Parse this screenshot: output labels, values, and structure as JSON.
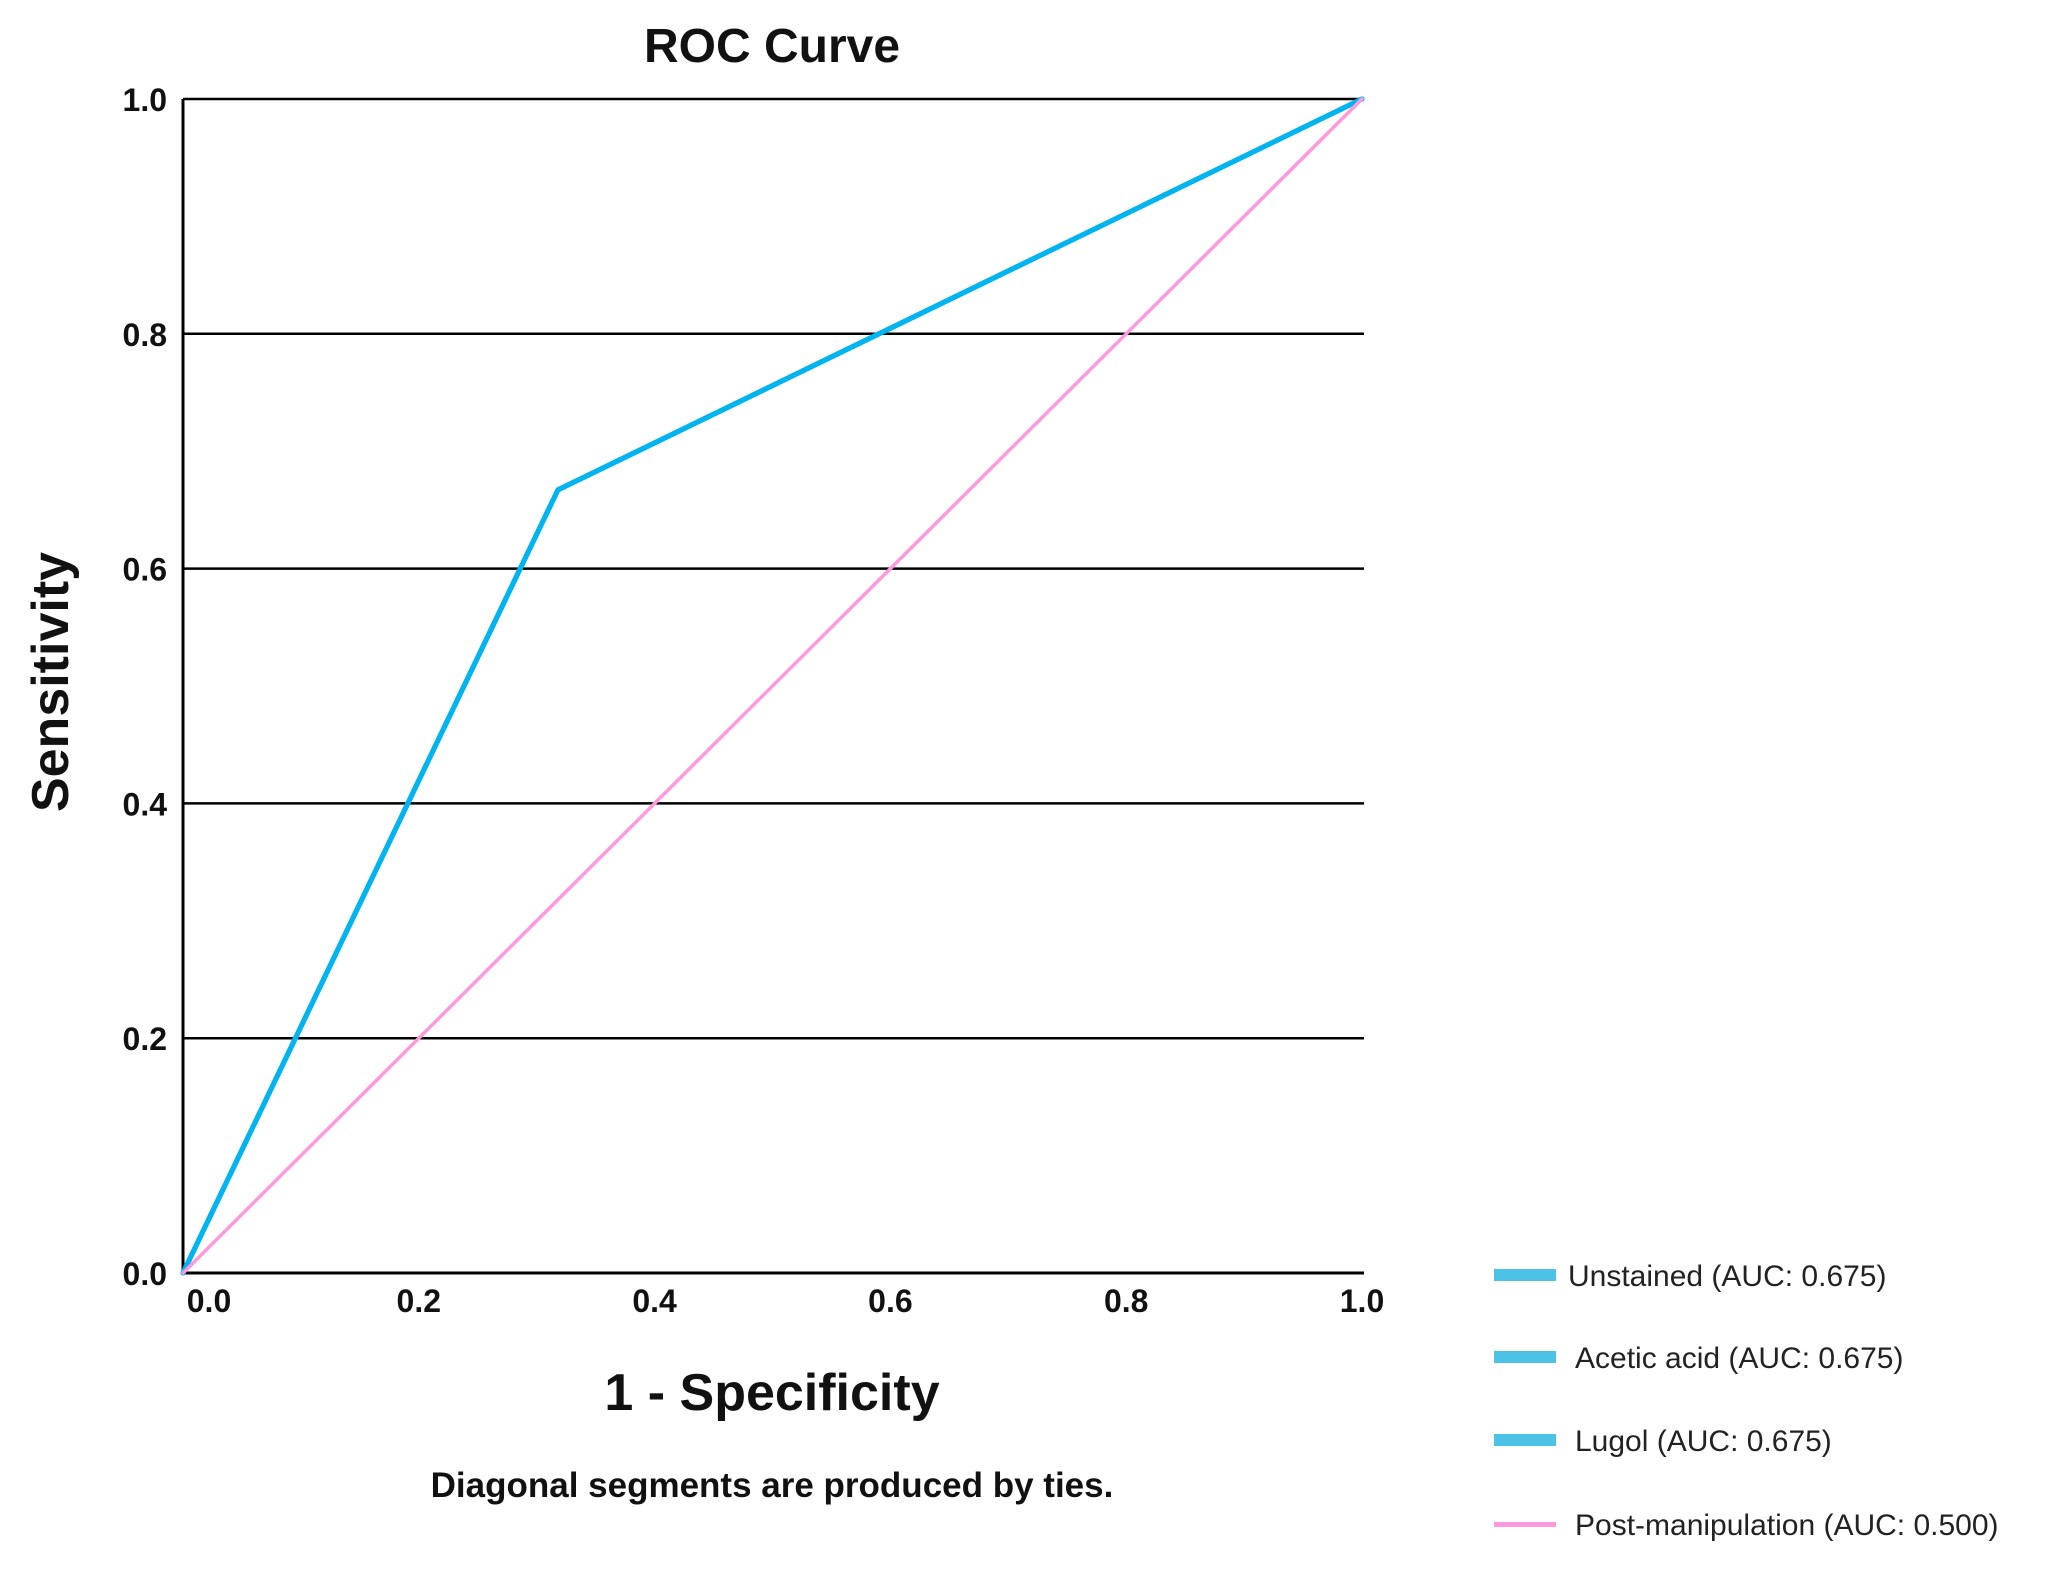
{
  "chart_data": {
    "type": "line",
    "title": "ROC Curve",
    "xlabel": "1 - Specificity",
    "ylabel": "Sensitivity",
    "note": "Diagonal segments are produced by ties.",
    "xlim": [
      0,
      1
    ],
    "ylim": [
      0,
      1
    ],
    "x_ticks": [
      0.0,
      0.2,
      0.4,
      0.6,
      0.8,
      1.0
    ],
    "x_tick_labels": [
      "0.0",
      "0.2",
      "0.4",
      "0.6",
      "0.8",
      "1.0"
    ],
    "y_ticks": [
      0.0,
      0.2,
      0.4,
      0.6,
      0.8,
      1.0
    ],
    "y_tick_labels": [
      "0.0",
      "0.2",
      "0.4",
      "0.6",
      "0.8",
      "1.0"
    ],
    "grid": "horizontal",
    "legend_position": "bottom-right",
    "series": [
      {
        "name": "Unstained (AUC: 0.675)",
        "color": "#00b4f0",
        "legend_color": "#4cc3e6",
        "x": [
          0.0,
          0.318,
          1.0
        ],
        "y": [
          0.0,
          0.667,
          1.0
        ]
      },
      {
        "name": "Acetic acid (AUC: 0.675)",
        "color": "#00b4f0",
        "legend_color": "#4cc3e6",
        "x": [
          0.0,
          0.318,
          1.0
        ],
        "y": [
          0.0,
          0.667,
          1.0
        ]
      },
      {
        "name": "Lugol (AUC: 0.675)",
        "color": "#00b4f0",
        "legend_color": "#4cc3e6",
        "x": [
          0.0,
          0.318,
          1.0
        ],
        "y": [
          0.0,
          0.667,
          1.0
        ]
      },
      {
        "name": "Post-manipulation (AUC: 0.500)",
        "color": "#ff99dd",
        "legend_color": "#ff99dd",
        "x": [
          0.0,
          1.0
        ],
        "y": [
          0.0,
          1.0
        ]
      }
    ]
  }
}
